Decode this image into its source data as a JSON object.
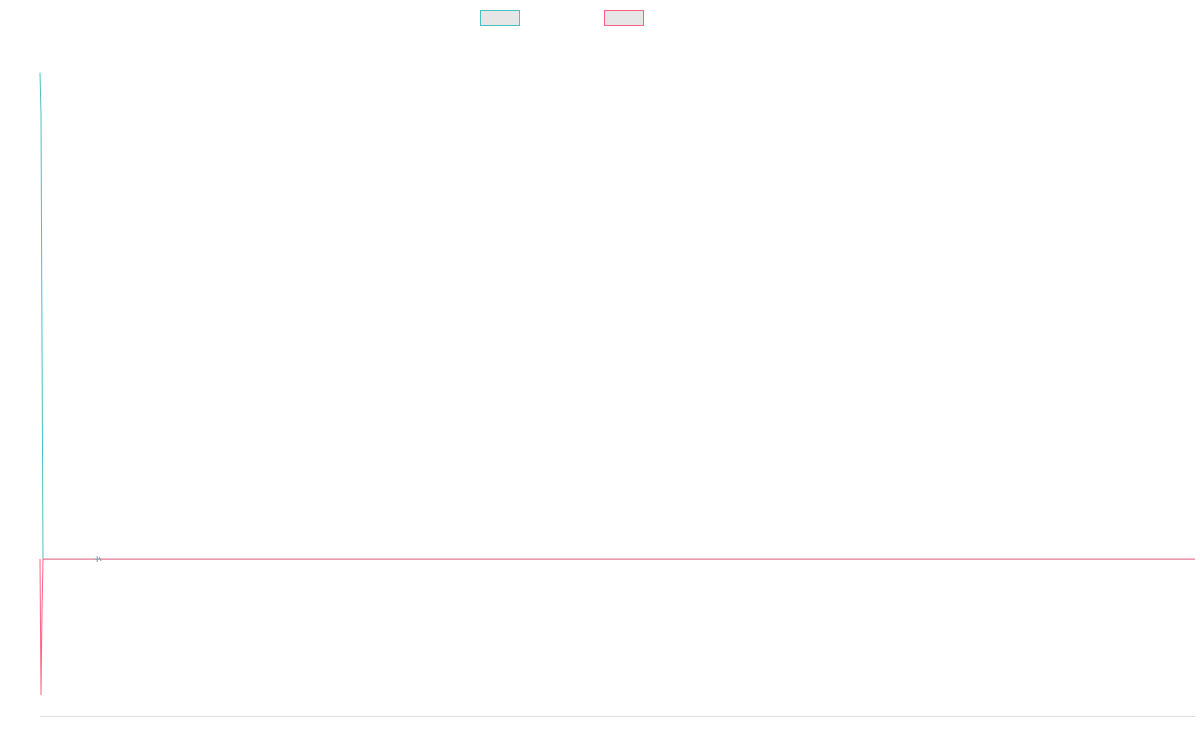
{
  "chart_data": {
    "type": "line",
    "title": "",
    "xlabel": "",
    "ylabel": "",
    "legend": "top-center",
    "grid": false,
    "xlim": [
      0,
      1000
    ],
    "ylim": [
      -0.3,
      1.0
    ],
    "x": [
      0,
      1,
      2,
      3,
      4,
      50,
      1000
    ],
    "series": [
      {
        "color": "#4bc0c0",
        "fill": "#e6e6e6",
        "values": [
          0.93,
          0.85,
          0.42,
          0.0,
          0.0,
          0.0,
          0.0
        ]
      },
      {
        "color": "#ff6384",
        "fill": "#e6e6e6",
        "values": [
          0.0,
          -0.26,
          -0.1,
          0.0,
          0.0,
          0.0,
          0.0
        ]
      }
    ],
    "annotations": [
      {
        "x": 50,
        "y": 0.0,
        "marker": "small-cross"
      }
    ]
  }
}
